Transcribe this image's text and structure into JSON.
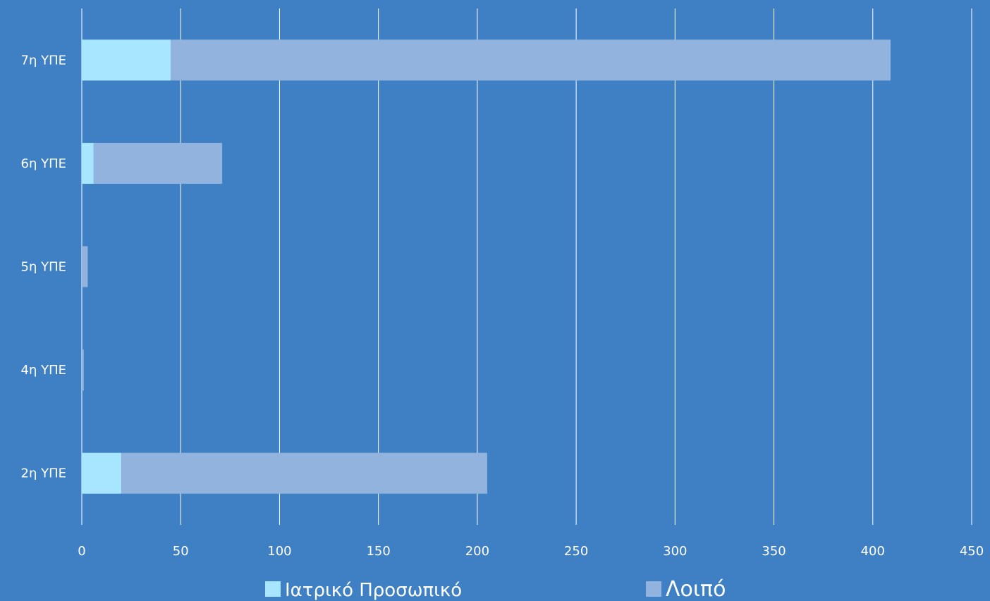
{
  "chart_data": {
    "type": "bar",
    "orientation": "horizontal",
    "stacked": true,
    "title": "",
    "xlabel": "",
    "ylabel": "",
    "categories": [
      "2η ΥΠΕ",
      "4η ΥΠΕ",
      "5η ΥΠΕ",
      "6η ΥΠΕ",
      "7η ΥΠΕ"
    ],
    "series": [
      {
        "name": "Ιατρικό Προσωπικό",
        "values": [
          20,
          0,
          0,
          6,
          45
        ],
        "color": "#A8E6FF"
      },
      {
        "name": "Λοιπό",
        "values": [
          185,
          1,
          3,
          65,
          364
        ],
        "color": "#91B3DE"
      }
    ],
    "xlim": [
      0,
      450
    ],
    "xticks": [
      0,
      50,
      100,
      150,
      200,
      250,
      300,
      350,
      400,
      450
    ],
    "grid": "vertical",
    "legend_position": "bottom",
    "colors": {
      "background": "#3F80C4",
      "gridline": "#FFFFFF",
      "text": "#FFFFFF"
    }
  }
}
